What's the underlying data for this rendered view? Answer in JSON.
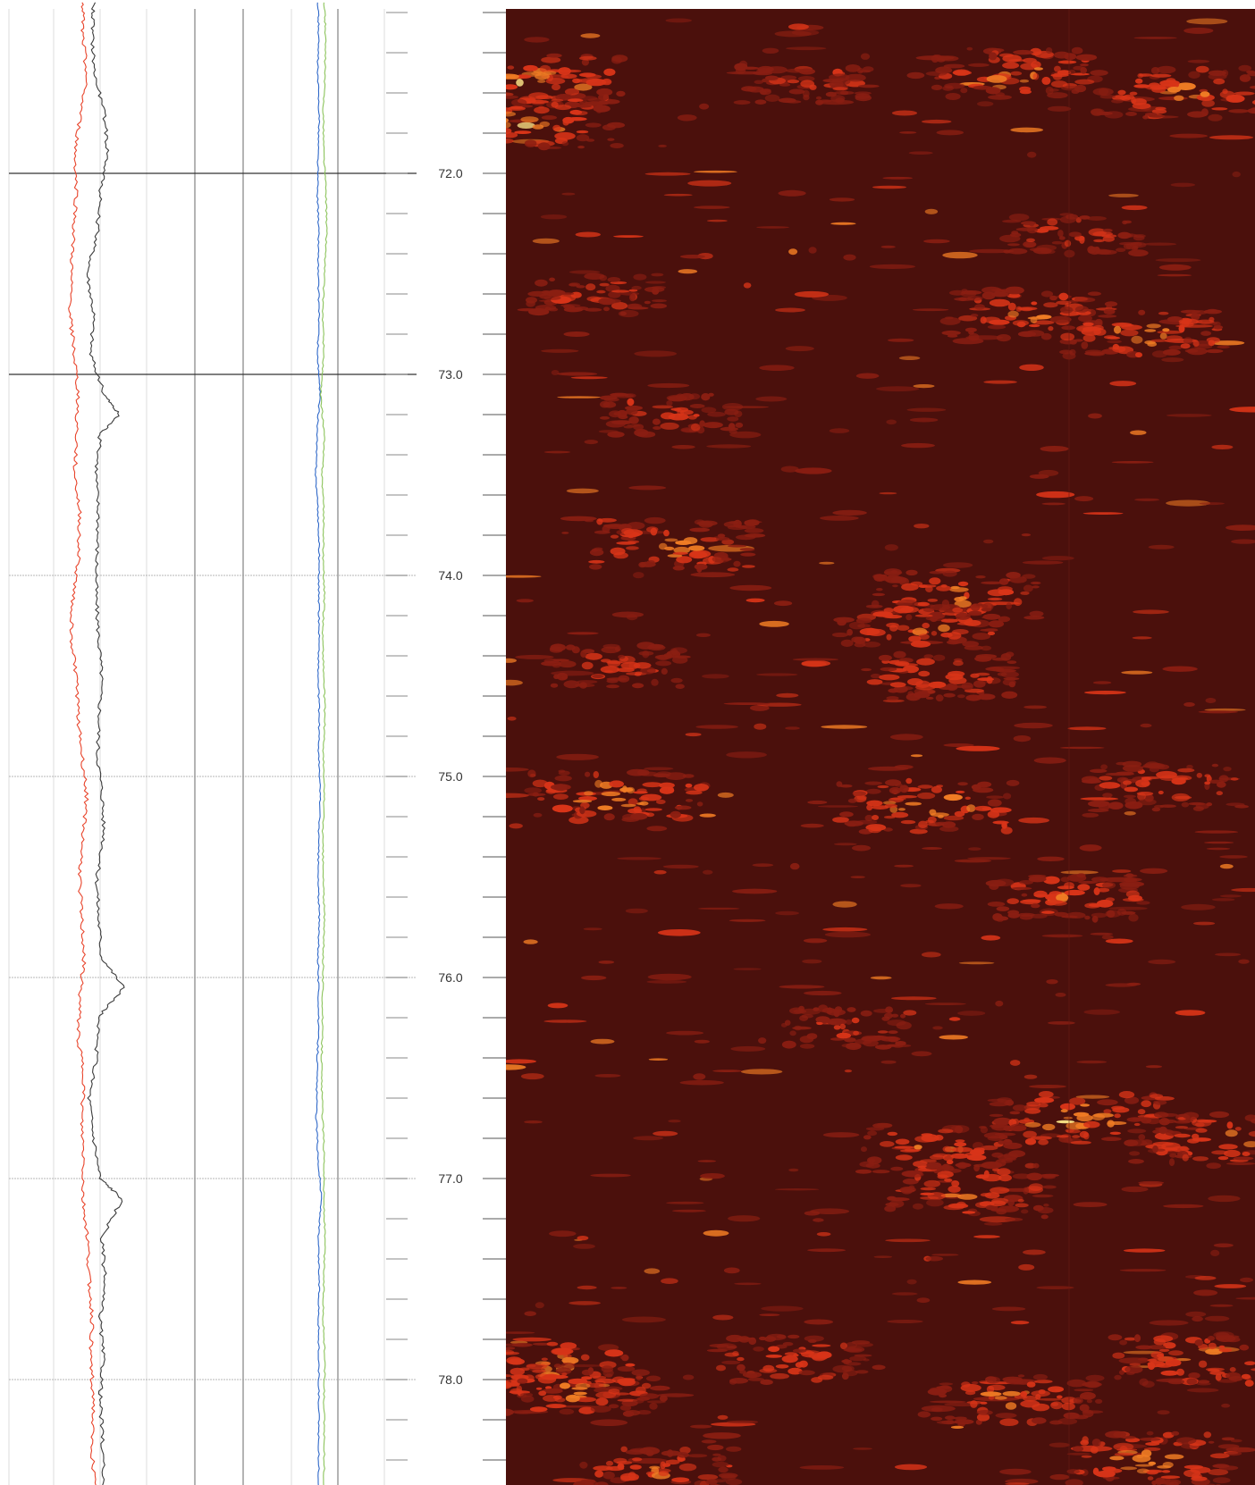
{
  "chart_data": {
    "type": "line",
    "title": "",
    "xlabel": "",
    "ylabel": "",
    "depth_range": [
      71.15,
      78.55
    ],
    "depth_labels": [
      "72.0",
      "73.0",
      "74.0",
      "75.0",
      "76.0",
      "77.0",
      "78.0"
    ],
    "grid": true,
    "curve_tracks": [
      {
        "series": [
          {
            "color": "#e8432a",
            "x_range": [
              0,
              1
            ],
            "depth": [
              71.15,
              71.3,
              71.5,
              71.7,
              71.9,
              72.1,
              72.3,
              72.5,
              72.7,
              72.9,
              73.1,
              73.3,
              73.5,
              73.7,
              73.9,
              74.1,
              74.3,
              74.5,
              74.7,
              74.9,
              75.1,
              75.3,
              75.5,
              75.7,
              75.9,
              76.1,
              76.3,
              76.5,
              76.7,
              76.9,
              77.1,
              77.3,
              77.5,
              77.7,
              77.9,
              78.1,
              78.3,
              78.55
            ],
            "value": [
              0.79,
              0.77,
              0.83,
              0.75,
              0.68,
              0.7,
              0.66,
              0.63,
              0.62,
              0.67,
              0.72,
              0.7,
              0.68,
              0.74,
              0.73,
              0.66,
              0.63,
              0.7,
              0.72,
              0.77,
              0.83,
              0.78,
              0.74,
              0.76,
              0.8,
              0.74,
              0.72,
              0.8,
              0.76,
              0.79,
              0.78,
              0.84,
              0.86,
              0.9,
              0.88,
              0.92,
              0.89,
              0.93
            ]
          },
          {
            "color": "#3a3a3a",
            "x_range": [
              0,
              1
            ],
            "depth": [
              71.15,
              71.3,
              71.5,
              71.7,
              71.9,
              72.1,
              72.3,
              72.5,
              72.7,
              72.9,
              73.1,
              73.2,
              73.3,
              73.5,
              73.7,
              73.9,
              74.1,
              74.3,
              74.5,
              74.7,
              74.9,
              75.1,
              75.3,
              75.5,
              75.7,
              75.9,
              76.05,
              76.2,
              76.4,
              76.6,
              76.8,
              77.0,
              77.1,
              77.3,
              77.5,
              77.7,
              77.9,
              78.1,
              78.3,
              78.55
            ],
            "value": [
              0.92,
              0.9,
              0.93,
              1.05,
              1.1,
              1.0,
              0.96,
              0.84,
              0.92,
              0.88,
              1.05,
              1.24,
              1.0,
              0.95,
              0.98,
              0.96,
              0.95,
              0.98,
              1.02,
              0.99,
              0.97,
              1.03,
              1.05,
              0.96,
              0.98,
              1.02,
              1.3,
              0.97,
              0.95,
              0.86,
              0.92,
              1.0,
              1.28,
              1.02,
              1.06,
              1.0,
              1.04,
              1.0,
              1.03,
              1.04
            ]
          }
        ]
      },
      {
        "series": [
          {
            "color": "#2f68c8",
            "x_range": [
              0,
              1
            ],
            "depth": [
              71.15,
              71.3,
              71.5,
              71.7,
              71.9,
              72.1,
              72.3,
              72.5,
              72.7,
              72.9,
              73.1,
              73.3,
              73.5,
              73.7,
              73.9,
              74.1,
              74.3,
              74.5,
              74.7,
              74.9,
              75.1,
              75.3,
              75.5,
              75.7,
              75.9,
              76.1,
              76.3,
              76.5,
              76.7,
              76.9,
              77.1,
              77.3,
              77.5,
              77.7,
              77.9,
              78.1,
              78.3,
              78.55
            ],
            "value": [
              0.62,
              0.64,
              0.6,
              0.66,
              0.62,
              0.6,
              0.64,
              0.62,
              0.66,
              0.6,
              0.68,
              0.58,
              0.54,
              0.62,
              0.66,
              0.64,
              0.66,
              0.62,
              0.66,
              0.64,
              0.7,
              0.64,
              0.62,
              0.66,
              0.62,
              0.64,
              0.62,
              0.58,
              0.56,
              0.62,
              0.74,
              0.62,
              0.66,
              0.64,
              0.64,
              0.64,
              0.64,
              0.64
            ]
          },
          {
            "color": "#8bc35a",
            "x_range": [
              0,
              1
            ],
            "depth": [
              71.15,
              71.3,
              71.5,
              71.7,
              71.9,
              72.1,
              72.3,
              72.5,
              72.7,
              72.9,
              73.1,
              73.3,
              73.5,
              73.7,
              73.9,
              74.1,
              74.3,
              74.5,
              74.7,
              74.9,
              75.1,
              75.3,
              75.5,
              75.7,
              75.9,
              76.1,
              76.3,
              76.5,
              76.7,
              76.9,
              77.1,
              77.3,
              77.5,
              77.7,
              77.9,
              78.1,
              78.3,
              78.55
            ],
            "value": [
              0.84,
              0.88,
              0.86,
              0.8,
              0.82,
              0.9,
              0.92,
              0.84,
              0.78,
              0.82,
              0.7,
              0.84,
              0.76,
              0.82,
              0.8,
              0.84,
              0.78,
              0.82,
              0.86,
              0.8,
              0.84,
              0.78,
              0.8,
              0.84,
              0.8,
              0.78,
              0.76,
              0.74,
              0.78,
              0.84,
              0.82,
              0.86,
              0.82,
              0.8,
              0.86,
              0.82,
              0.84,
              0.82
            ]
          }
        ]
      }
    ],
    "image_track": {
      "type": "heatmap",
      "palette": [
        "#4b100c",
        "#8a1e12",
        "#d83418",
        "#f07c24",
        "#ffe98a"
      ],
      "bright_zones": [
        {
          "depth": 71.55,
          "position": 0.03,
          "intensity": 0.98
        },
        {
          "depth": 71.75,
          "position": 0.03,
          "intensity": 0.92
        },
        {
          "depth": 71.5,
          "position": 0.68,
          "intensity": 0.8
        },
        {
          "depth": 71.6,
          "position": 0.9,
          "intensity": 0.85
        },
        {
          "depth": 71.55,
          "position": 0.4,
          "intensity": 0.55
        },
        {
          "depth": 72.3,
          "position": 0.76,
          "intensity": 0.6
        },
        {
          "depth": 72.7,
          "position": 0.7,
          "intensity": 0.8
        },
        {
          "depth": 72.8,
          "position": 0.85,
          "intensity": 0.85
        },
        {
          "depth": 72.6,
          "position": 0.12,
          "intensity": 0.55
        },
        {
          "depth": 73.2,
          "position": 0.22,
          "intensity": 0.6
        },
        {
          "depth": 73.85,
          "position": 0.22,
          "intensity": 0.85
        },
        {
          "depth": 74.1,
          "position": 0.6,
          "intensity": 0.8
        },
        {
          "depth": 74.25,
          "position": 0.55,
          "intensity": 0.78
        },
        {
          "depth": 74.5,
          "position": 0.58,
          "intensity": 0.7
        },
        {
          "depth": 74.45,
          "position": 0.15,
          "intensity": 0.6
        },
        {
          "depth": 75.1,
          "position": 0.15,
          "intensity": 0.92
        },
        {
          "depth": 75.15,
          "position": 0.56,
          "intensity": 0.9
        },
        {
          "depth": 75.05,
          "position": 0.88,
          "intensity": 0.75
        },
        {
          "depth": 75.6,
          "position": 0.75,
          "intensity": 0.72
        },
        {
          "depth": 76.25,
          "position": 0.45,
          "intensity": 0.55
        },
        {
          "depth": 76.7,
          "position": 0.76,
          "intensity": 0.95
        },
        {
          "depth": 76.8,
          "position": 0.95,
          "intensity": 0.85
        },
        {
          "depth": 76.85,
          "position": 0.58,
          "intensity": 0.75
        },
        {
          "depth": 77.05,
          "position": 0.62,
          "intensity": 0.8
        },
        {
          "depth": 77.95,
          "position": 0.05,
          "intensity": 0.92
        },
        {
          "depth": 77.9,
          "position": 0.38,
          "intensity": 0.75
        },
        {
          "depth": 77.9,
          "position": 0.92,
          "intensity": 0.85
        },
        {
          "depth": 78.05,
          "position": 0.1,
          "intensity": 0.85
        },
        {
          "depth": 78.1,
          "position": 0.68,
          "intensity": 0.8
        },
        {
          "depth": 78.4,
          "position": 0.86,
          "intensity": 0.95
        },
        {
          "depth": 78.45,
          "position": 0.2,
          "intensity": 0.75
        }
      ]
    }
  }
}
